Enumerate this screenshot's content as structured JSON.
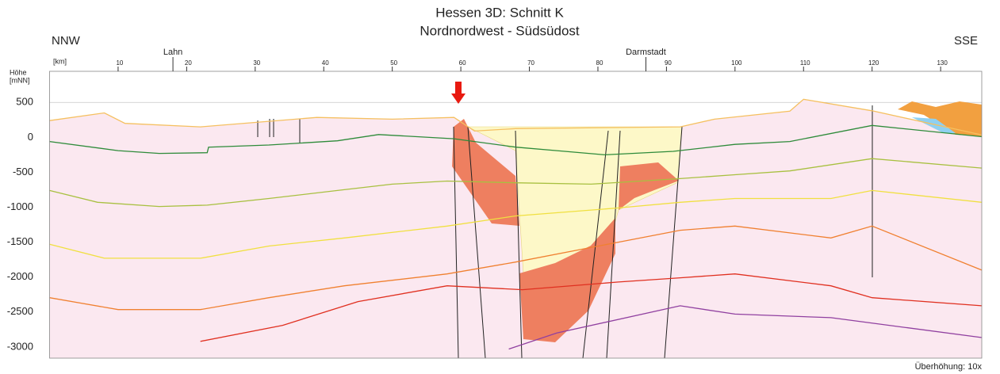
{
  "chart_data": {
    "type": "line",
    "title": "Hessen 3D: Schnitt K",
    "subtitle": "Nordnordwest - Südsüdost",
    "direction_left": "NNW",
    "direction_right": "SSE",
    "x_label": "[km]",
    "y_label": [
      "Höhe",
      "[mNN]"
    ],
    "footer": "Überhöhung: 10x",
    "xlim": [
      0,
      136
    ],
    "xticks": [
      10,
      20,
      30,
      40,
      50,
      60,
      70,
      80,
      90,
      100,
      110,
      120,
      130
    ],
    "ylim": [
      -3160,
      945
    ],
    "yticks": [
      500,
      0,
      -500,
      -1000,
      -1500,
      -2000,
      -2500,
      -3000
    ],
    "grid": true,
    "annotations": [
      {
        "text": "Lahn",
        "x": 18
      },
      {
        "text": "Darmstadt",
        "x": 87
      }
    ],
    "series": [
      {
        "color": "#f5c060",
        "fill": "#fbe8f0",
        "x": [
          0,
          8,
          11,
          22,
          39,
          50,
          59,
          62,
          68,
          92,
          97,
          108,
          110,
          120,
          136
        ],
        "values": [
          240,
          350,
          200,
          150,
          285,
          260,
          285,
          90,
          125,
          150,
          260,
          375,
          545,
          380,
          35
        ]
      },
      {
        "color": "#2e8b3a",
        "x": [
          0,
          10,
          16,
          23,
          23.2,
          32,
          42,
          48,
          59,
          68,
          74,
          81,
          91,
          100,
          108,
          120,
          136
        ],
        "values": [
          -60,
          -190,
          -230,
          -220,
          -140,
          -110,
          -50,
          40,
          -20,
          -140,
          -190,
          -250,
          -200,
          -100,
          -60,
          170,
          10
        ]
      },
      {
        "color": "#a8c040",
        "x": [
          0,
          7,
          16,
          23,
          32,
          42,
          50,
          58,
          68,
          79,
          92,
          100,
          108,
          120,
          136
        ],
        "values": [
          -760,
          -930,
          -990,
          -970,
          -875,
          -760,
          -670,
          -625,
          -650,
          -670,
          -590,
          -535,
          -480,
          -305,
          -440
        ]
      },
      {
        "color": "#f0e040",
        "x": [
          0,
          8,
          22,
          32,
          43,
          58,
          68,
          83,
          92,
          100,
          114,
          120,
          136
        ],
        "values": [
          -1530,
          -1730,
          -1730,
          -1555,
          -1440,
          -1270,
          -1125,
          -1010,
          -930,
          -875,
          -875,
          -760,
          -930
        ]
      },
      {
        "color": "#f08030",
        "x": [
          0,
          10,
          22,
          32,
          43,
          58,
          68,
          83,
          92,
          100,
          114,
          120,
          136
        ],
        "values": [
          -2295,
          -2465,
          -2465,
          -2295,
          -2125,
          -1955,
          -1785,
          -1500,
          -1330,
          -1270,
          -1440,
          -1270,
          -1900
        ]
      },
      {
        "color": "#e03020",
        "x": [
          22,
          34,
          45,
          58,
          69,
          83,
          92,
          100,
          114,
          120,
          136
        ],
        "values": [
          -2920,
          -2690,
          -2350,
          -2125,
          -2180,
          -2070,
          -2010,
          -1955,
          -2125,
          -2295,
          -2410
        ]
      },
      {
        "color": "#9040a0",
        "x": [
          67,
          74,
          92,
          100,
          114,
          136
        ],
        "values": [
          -3030,
          -2800,
          -2410,
          -2530,
          -2580,
          -2865
        ]
      }
    ]
  }
}
